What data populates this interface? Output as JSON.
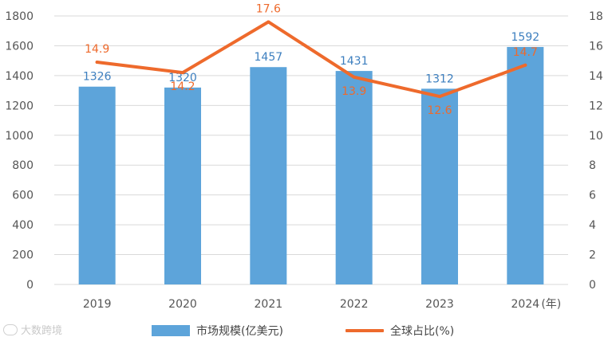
{
  "colors": {
    "bar": "#5da4da",
    "line": "#ee6a2c",
    "bar_label": "#3d7fbf",
    "line_label": "#ee6a2c",
    "axis_text": "#555555",
    "grid": "#d9d9d9"
  },
  "watermark": {
    "text": "大数跨境"
  },
  "legend": {
    "bar_label": "市场规模(亿美元)",
    "line_label": "全球占比(%)"
  },
  "chart_data": {
    "type": "bar",
    "categories": [
      "2019",
      "2020",
      "2021",
      "2022",
      "2023",
      "2024"
    ],
    "x_unit_label": "(年)",
    "series": [
      {
        "name": "市场规模(亿美元)",
        "type": "bar",
        "axis": "left",
        "values": [
          1326,
          1320,
          1457,
          1431,
          1312,
          1592
        ],
        "labels": [
          "1326",
          "1320",
          "1457",
          "1431",
          "1312",
          "1592"
        ]
      },
      {
        "name": "全球占比(%)",
        "type": "line",
        "axis": "right",
        "values": [
          14.9,
          14.2,
          17.6,
          13.9,
          12.6,
          14.7
        ],
        "labels": [
          "14.9",
          "14.2",
          "17.6",
          "13.9",
          "12.6",
          "14.7"
        ]
      }
    ],
    "y_left": {
      "min": 0,
      "max": 1800,
      "step": 200,
      "ticks": [
        "0",
        "200",
        "400",
        "600",
        "800",
        "1000",
        "1200",
        "1400",
        "1600",
        "1800"
      ]
    },
    "y_right": {
      "min": 0,
      "max": 18,
      "step": 2,
      "ticks": [
        "0",
        "2",
        "4",
        "6",
        "8",
        "10",
        "12",
        "14",
        "16",
        "18"
      ]
    },
    "grid": true,
    "legend_position": "bottom"
  }
}
